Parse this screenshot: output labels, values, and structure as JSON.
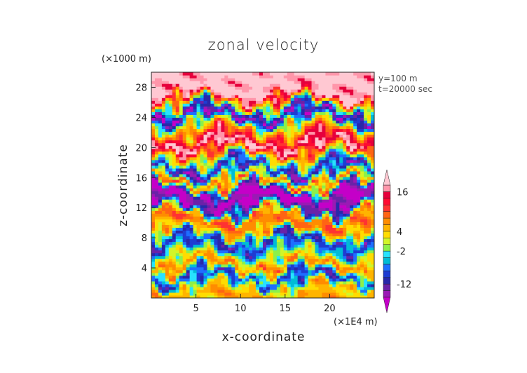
{
  "chart_data": {
    "type": "heatmap",
    "title": "zonal velocity",
    "xlabel": "x-coordinate",
    "ylabel": "z-coordinate",
    "x_unit": "(×1E4 m)",
    "y_unit": "(×1000 m)",
    "annotations": [
      "y=100 m",
      "t=20000 sec"
    ],
    "xlim": [
      0,
      25
    ],
    "ylim": [
      0,
      30
    ],
    "x_ticks": [
      5,
      10,
      15,
      20
    ],
    "y_ticks": [
      4,
      8,
      12,
      16,
      20,
      24,
      28
    ],
    "colorbar_labels": [
      16,
      4,
      -2,
      -12
    ],
    "colorbar_levels": [
      -20,
      -16,
      -14,
      -12,
      -10,
      -8,
      -6,
      -4,
      -2,
      0,
      2,
      4,
      6,
      8,
      10,
      12,
      14,
      16,
      18,
      20
    ],
    "palette": [
      "#c400c8",
      "#9a1ab4",
      "#6a22a8",
      "#2828aa",
      "#1e3cd2",
      "#1e6eff",
      "#00bcd6",
      "#28e2ff",
      "#8cf04a",
      "#d2f528",
      "#ffdc00",
      "#ffb400",
      "#ff8c00",
      "#ff6414",
      "#ff3232",
      "#ff0a32",
      "#e6003c",
      "#ff96aa",
      "#ffc8d2"
    ],
    "bands": [
      {
        "z": 29.2,
        "value": 19
      },
      {
        "z": 27.0,
        "value": 18
      },
      {
        "z": 24.5,
        "value": -17
      },
      {
        "z": 23.0,
        "value": 2
      },
      {
        "z": 21.8,
        "value": 10
      },
      {
        "z": 20.5,
        "value": 19
      },
      {
        "z": 18.8,
        "value": 2
      },
      {
        "z": 17.2,
        "value": -14
      },
      {
        "z": 15.5,
        "value": 10
      },
      {
        "z": 14.0,
        "value": -17
      },
      {
        "z": 12.5,
        "value": -16
      },
      {
        "z": 10.8,
        "value": 9
      },
      {
        "z": 9.2,
        "value": 6
      },
      {
        "z": 7.6,
        "value": -12
      },
      {
        "z": 6.0,
        "value": -2
      },
      {
        "z": 4.4,
        "value": 8
      },
      {
        "z": 2.8,
        "value": -11
      },
      {
        "z": 1.2,
        "value": 5
      }
    ]
  }
}
